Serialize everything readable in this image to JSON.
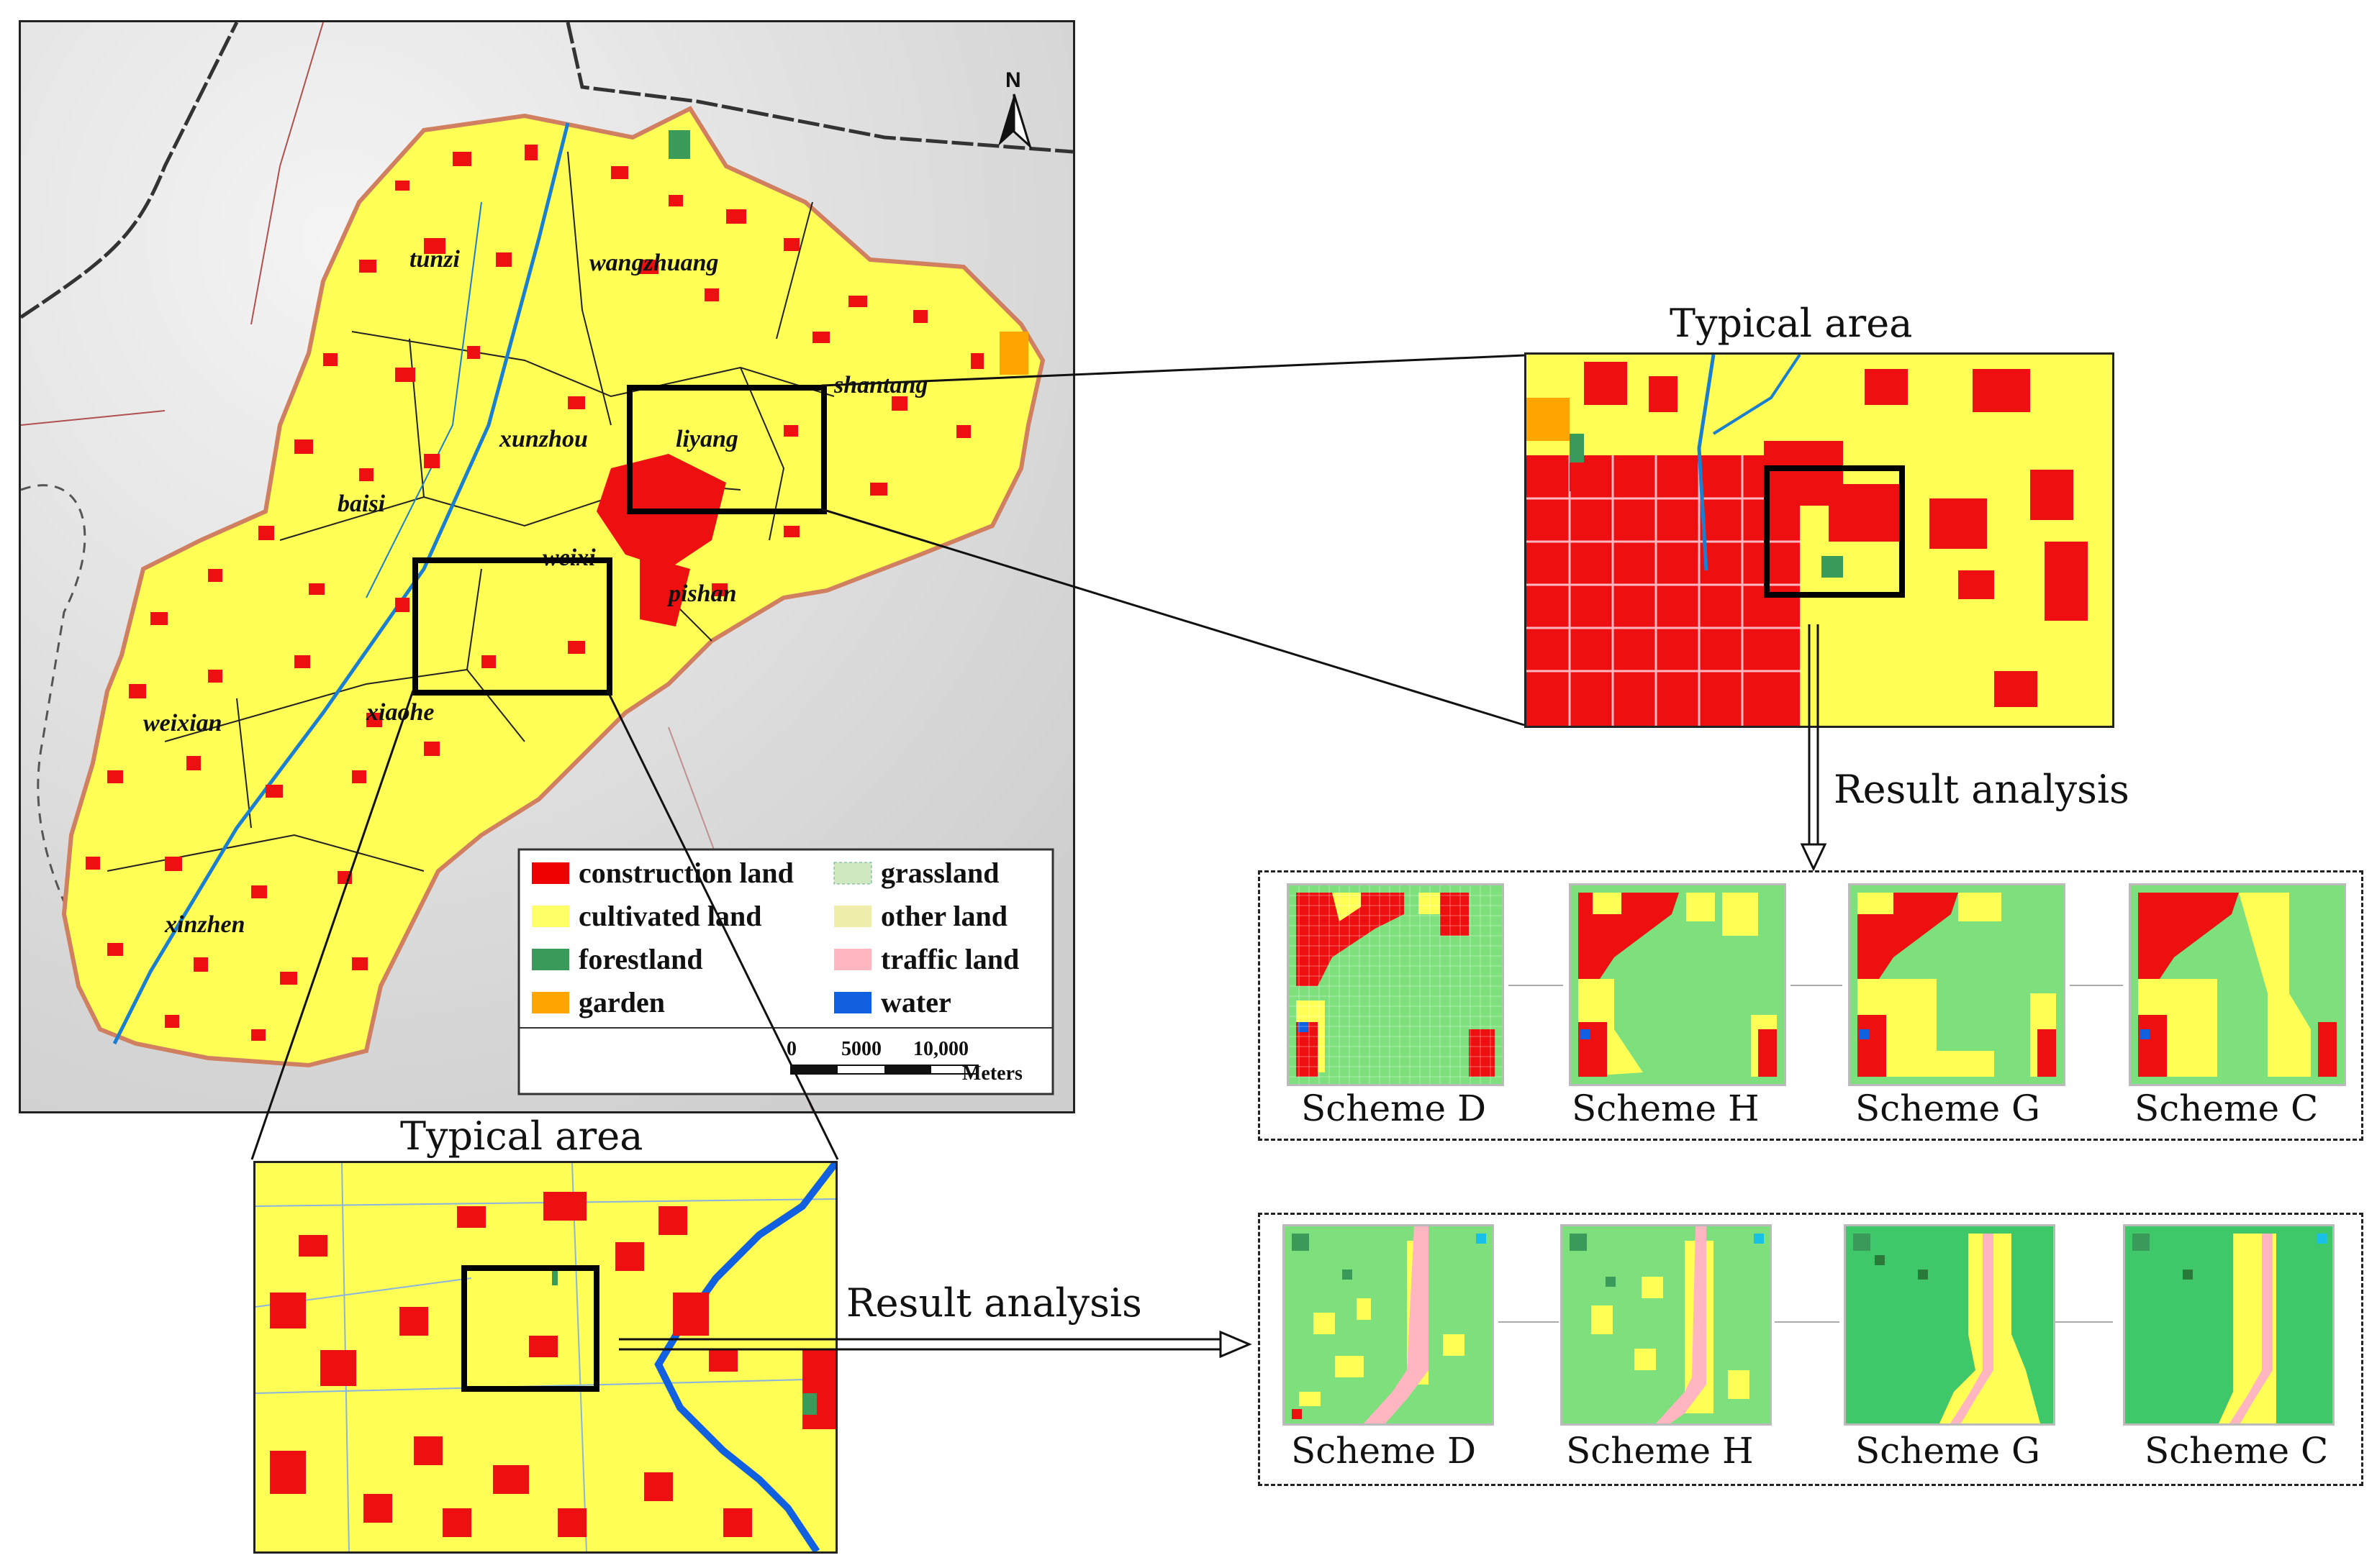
{
  "map": {
    "north_label": "N",
    "places": [
      "tunzi",
      "wangzhuang",
      "shantang",
      "xunzhou",
      "liyang",
      "baisi",
      "weixi",
      "pishan",
      "weixian",
      "xiaohe",
      "xinzhen"
    ],
    "legend": [
      {
        "label": "construction land",
        "color": "#ee0000"
      },
      {
        "label": "grassland",
        "color": "#cfe8c0"
      },
      {
        "label": "cultivated land",
        "color": "#ffff66"
      },
      {
        "label": "other land",
        "color": "#eeeeaa"
      },
      {
        "label": "forestland",
        "color": "#3a9a5a"
      },
      {
        "label": "traffic land",
        "color": "#ffb6c1"
      },
      {
        "label": "garden",
        "color": "#ffa500"
      },
      {
        "label": "water",
        "color": "#1060e0"
      }
    ],
    "scale": {
      "ticks": [
        "0",
        "5000",
        "10,000"
      ],
      "unit": "Meters"
    }
  },
  "top_detail": {
    "title": "Typical area",
    "analysis_label": "Result analysis"
  },
  "bottom_detail": {
    "title": "Typical area",
    "analysis_label": "Result analysis"
  },
  "top_schemes": [
    "Scheme D",
    "Scheme H",
    "Scheme G",
    "Scheme C"
  ],
  "bottom_schemes": [
    "Scheme D",
    "Scheme H",
    "Scheme G",
    "Scheme C"
  ]
}
